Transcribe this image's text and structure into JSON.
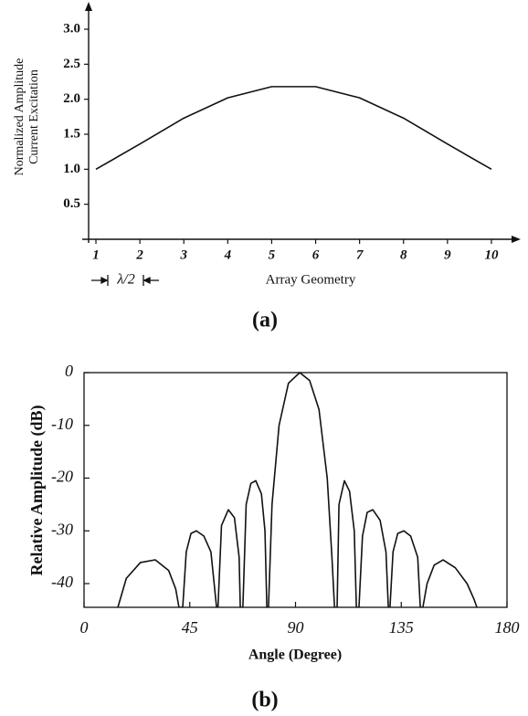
{
  "chart_data": [
    {
      "type": "line",
      "ylabel": [
        "Normalized Amplitude",
        "Current Excitation"
      ],
      "xlabel": "Array Geometry",
      "annotation": "λ/2",
      "caption": "(a)",
      "x": [
        1,
        2,
        3,
        4,
        5,
        6,
        7,
        8,
        9,
        10
      ],
      "series": [
        {
          "color": "#111111",
          "values": [
            1.0,
            1.36,
            1.73,
            2.02,
            2.18,
            2.18,
            2.02,
            1.73,
            1.36,
            1.0
          ]
        }
      ],
      "xlim": [
        0.8,
        10.5
      ],
      "ylim": [
        0,
        3.3
      ],
      "xticks": [
        1,
        2,
        3,
        4,
        5,
        6,
        7,
        8,
        9,
        10
      ],
      "yticks": [
        0.5,
        {
          "value": 1,
          "label": "1.0"
        },
        1.5,
        {
          "value": 2,
          "label": "2.0"
        },
        2.5,
        {
          "value": 3,
          "label": "3.0"
        }
      ]
    },
    {
      "type": "line",
      "ylabel": "Relative Amplitude (dB)",
      "xlabel": "Angle (Degree)",
      "caption": "(b)",
      "x": [
        14.4,
        18,
        24,
        30.3,
        36,
        39,
        40.4,
        42,
        43.5,
        45.5,
        47.8,
        51,
        54,
        56.4,
        57,
        58.5,
        61.4,
        64,
        66,
        66.5,
        67.6,
        69,
        71,
        73.1,
        75.5,
        77,
        77.8,
        78.5,
        80,
        83,
        87,
        91.8,
        96,
        100,
        103.5,
        105.5,
        106.6,
        107.7,
        108.5,
        110.8,
        113,
        115,
        115.9,
        117,
        118.5,
        120.5,
        122.9,
        126,
        128.5,
        129.5,
        130.2,
        131.5,
        133.5,
        136.1,
        139,
        142,
        143.1,
        144.2,
        146,
        149,
        152.8,
        158,
        163,
        166,
        167.2
      ],
      "series": [
        {
          "color": "#111111",
          "values": [
            -44.5,
            -39,
            -36,
            -35.5,
            -37.5,
            -41,
            -44.5,
            -44.5,
            -34,
            -30.5,
            -30,
            -31,
            -34,
            -44.5,
            -44.5,
            -29,
            -26,
            -27.5,
            -35,
            -44.5,
            -44.5,
            -25,
            -21,
            -20.5,
            -23,
            -30,
            -44.5,
            -44.5,
            -25,
            -10,
            -2,
            0,
            -1.5,
            -7,
            -20,
            -35,
            -44.5,
            -44.5,
            -25,
            -20.5,
            -22.5,
            -30,
            -44.5,
            -44.5,
            -31,
            -26.5,
            -26,
            -28,
            -34,
            -44.5,
            -44.5,
            -34,
            -30.5,
            -30,
            -31,
            -35,
            -44.5,
            -44.5,
            -40,
            -36.5,
            -35.5,
            -37,
            -40,
            -43,
            -44.5
          ]
        }
      ],
      "xlim": [
        0,
        180
      ],
      "ylim": [
        -44.5,
        0
      ],
      "xticks": [
        0,
        45,
        90,
        135,
        180
      ],
      "yticks": [
        0,
        -10,
        -20,
        -30,
        -40
      ]
    }
  ]
}
